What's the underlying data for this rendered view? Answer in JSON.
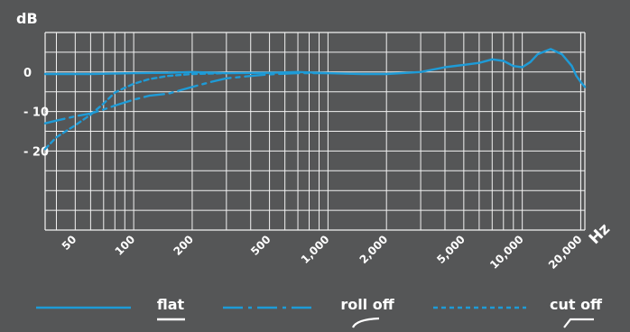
{
  "chart_data": {
    "type": "line",
    "xscale": "log",
    "xlim": [
      35,
      21000
    ],
    "ylim": [
      -40,
      10
    ],
    "ylabel": "dB",
    "xunit": "Hz",
    "grid": true,
    "line_color": "#1e9bd7",
    "x_ticks": [
      {
        "value": 50,
        "label": "50"
      },
      {
        "value": 100,
        "label": "100"
      },
      {
        "value": 200,
        "label": "200"
      },
      {
        "value": 500,
        "label": "500"
      },
      {
        "value": 1000,
        "label": "1,000"
      },
      {
        "value": 2000,
        "label": "2,000"
      },
      {
        "value": 5000,
        "label": "5,000"
      },
      {
        "value": 10000,
        "label": "10,000"
      },
      {
        "value": 20000,
        "label": "20,000"
      }
    ],
    "y_ticks": [
      {
        "value": 0,
        "label": "0"
      },
      {
        "value": -10,
        "label": "- 10"
      },
      {
        "value": -20,
        "label": "- 20"
      }
    ],
    "series": [
      {
        "name": "flat",
        "dash": "solid",
        "points": [
          [
            35,
            -0.5
          ],
          [
            60,
            -0.5
          ],
          [
            100,
            -0.3
          ],
          [
            150,
            -0.2
          ],
          [
            200,
            0
          ],
          [
            300,
            -0.3
          ],
          [
            500,
            -0.2
          ],
          [
            700,
            0
          ],
          [
            1000,
            -0.3
          ],
          [
            1500,
            -0.5
          ],
          [
            2000,
            -0.5
          ],
          [
            3000,
            0
          ],
          [
            4000,
            1.2
          ],
          [
            5000,
            1.8
          ],
          [
            6000,
            2.3
          ],
          [
            7000,
            3.2
          ],
          [
            8000,
            2.8
          ],
          [
            9000,
            1.5
          ],
          [
            10000,
            1.2
          ],
          [
            11000,
            2.5
          ],
          [
            12000,
            4.5
          ],
          [
            14000,
            5.8
          ],
          [
            16000,
            4.5
          ],
          [
            18000,
            1.5
          ],
          [
            19000,
            -1
          ],
          [
            20000,
            -2.5
          ],
          [
            21000,
            -3.8
          ]
        ]
      },
      {
        "name": "roll off",
        "dash": "dashdot",
        "points": [
          [
            35,
            -13
          ],
          [
            40,
            -12.3
          ],
          [
            50,
            -11.2
          ],
          [
            60,
            -10.5
          ],
          [
            70,
            -9.5
          ],
          [
            80,
            -8.5
          ],
          [
            100,
            -7
          ],
          [
            120,
            -6
          ],
          [
            150,
            -5.5
          ],
          [
            200,
            -3.8
          ],
          [
            250,
            -2.5
          ],
          [
            300,
            -1.6
          ],
          [
            400,
            -1
          ],
          [
            500,
            -0.6
          ],
          [
            700,
            -0.3
          ],
          [
            1000,
            -0.3
          ]
        ]
      },
      {
        "name": "cut off",
        "dash": "dashed",
        "points": [
          [
            35,
            -19.5
          ],
          [
            40,
            -16.5
          ],
          [
            50,
            -13.5
          ],
          [
            60,
            -10.8
          ],
          [
            70,
            -8
          ],
          [
            80,
            -5.2
          ],
          [
            90,
            -4
          ],
          [
            100,
            -3
          ],
          [
            120,
            -1.8
          ],
          [
            150,
            -1
          ],
          [
            200,
            -0.5
          ],
          [
            300,
            -0.3
          ]
        ]
      }
    ]
  },
  "legend": [
    {
      "label": "flat",
      "dash": "solid"
    },
    {
      "label": "roll off",
      "dash": "dashdot"
    },
    {
      "label": "cut off",
      "dash": "dashed"
    }
  ]
}
